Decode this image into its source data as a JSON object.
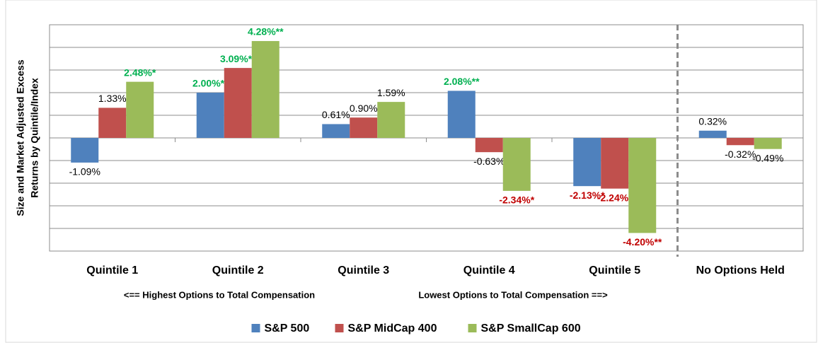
{
  "chart_data": {
    "type": "bar",
    "y_label": [
      "Size and Market Adjusted  Excess",
      "Returns by Quintile/Index"
    ],
    "categories": [
      "Quintile 1",
      "Quintile 2",
      "Quintile 3",
      "Quintile 4",
      "Quintile 5",
      "No Options Held"
    ],
    "annotations": [
      "<== Highest Options to Total Compensation",
      "Lowest Options to Total Compensation ==>"
    ],
    "series": [
      {
        "name": "S&P 500",
        "color": "#4f81bd",
        "values": [
          -1.09,
          2.0,
          0.61,
          2.08,
          -2.13,
          0.32
        ],
        "value_labels": [
          "-1.09%",
          "2.00%**",
          "0.61%",
          "2.08%**",
          "-2.13%*",
          "0.32%"
        ]
      },
      {
        "name": "S&P MidCap 400",
        "color": "#c0504d",
        "values": [
          1.33,
          3.09,
          0.9,
          -0.63,
          -2.24,
          -0.32
        ],
        "value_labels": [
          "1.33%",
          "3.09%**",
          "0.90%",
          "-0.63%",
          "-2.24%*",
          "-0.32%"
        ]
      },
      {
        "name": "S&P SmallCap 600",
        "color": "#9bbb59",
        "values": [
          2.48,
          4.28,
          1.59,
          -2.34,
          -4.2,
          -0.49
        ],
        "value_labels": [
          "2.48%*",
          "4.28%**",
          "1.59%",
          "-2.34%*",
          "-4.20%**",
          "-0.49%"
        ]
      }
    ],
    "ylim": [
      -5,
      5
    ],
    "yticks": [
      -5,
      -4,
      -3,
      -2,
      -1,
      0,
      1,
      2,
      3,
      4,
      5
    ],
    "grid": true,
    "legend": "bottom"
  }
}
